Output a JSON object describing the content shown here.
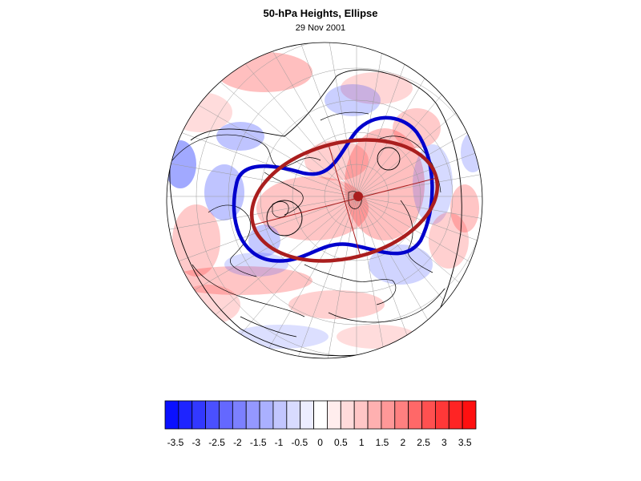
{
  "title": "50-hPa Heights, Ellipse",
  "date": "29 Nov 2001",
  "colorbar": {
    "colors": [
      "#0a10ff",
      "#1e24ff",
      "#3238ff",
      "#4a50ff",
      "#6468ff",
      "#7c80ff",
      "#9498ff",
      "#aab0ff",
      "#c2c6ff",
      "#d8dbff",
      "#ecedff",
      "#ffffff",
      "#ffeded",
      "#ffdbdb",
      "#ffc6c6",
      "#ffb0b0",
      "#ff9898",
      "#ff8080",
      "#ff6868",
      "#ff5050",
      "#ff3838",
      "#ff2424",
      "#ff1010"
    ],
    "tick_labels": [
      "-3.5",
      "-3",
      "-2.5",
      "-2",
      "-1.5",
      "-1",
      "-0.5",
      "0",
      "0.5",
      "1",
      "1.5",
      "2",
      "2.5",
      "3",
      "3.5"
    ]
  },
  "map": {
    "projection": "orthographic-polar",
    "anomaly_blue": "#2a3cff",
    "anomaly_red": "#ff2a2a",
    "contour_blue_color": "#0000cc",
    "ellipse_color": "#aa1e1e",
    "coastline_color": "#000000"
  }
}
